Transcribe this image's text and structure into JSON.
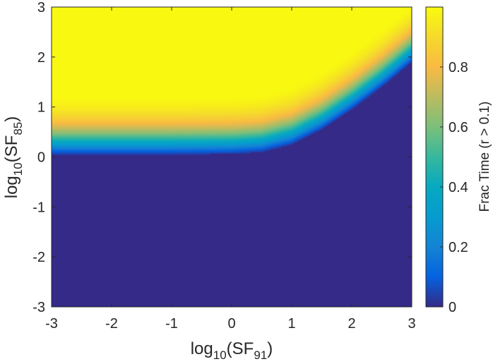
{
  "chart_data": {
    "type": "heatmap",
    "title": "",
    "x_axis": {
      "label_main": "log",
      "label_sub": "10",
      "label_paren_open": "(SF",
      "label_sub2": "91",
      "label_paren_close": ")",
      "range": [
        -3,
        3
      ],
      "ticks": [
        "-3",
        "-2",
        "-1",
        "0",
        "1",
        "2",
        "3"
      ]
    },
    "y_axis": {
      "label_main": "log",
      "label_sub": "10",
      "label_paren_open": "(SF",
      "label_sub2": "85",
      "label_paren_close": ")",
      "range": [
        -3,
        3
      ],
      "ticks": [
        "-3",
        "-2",
        "-1",
        "0",
        "1",
        "2",
        "3"
      ]
    },
    "colorbar": {
      "label": "Frac Time (r > 0.1)",
      "range": [
        0,
        1
      ],
      "ticks": [
        "0",
        "0.2",
        "0.4",
        "0.6",
        "0.8"
      ],
      "colormap": "parula"
    },
    "z_description": {
      "zero_region_boundary_x": [
        -3,
        -2,
        -1,
        0,
        0.5,
        1.0,
        1.5,
        2.0,
        2.5,
        3.0
      ],
      "zero_region_boundary_y": [
        0.05,
        0.05,
        0.05,
        0.06,
        0.1,
        0.25,
        0.55,
        0.95,
        1.4,
        1.9
      ],
      "transition_width_log10": 0.9,
      "high_value_level": 0.99
    }
  }
}
